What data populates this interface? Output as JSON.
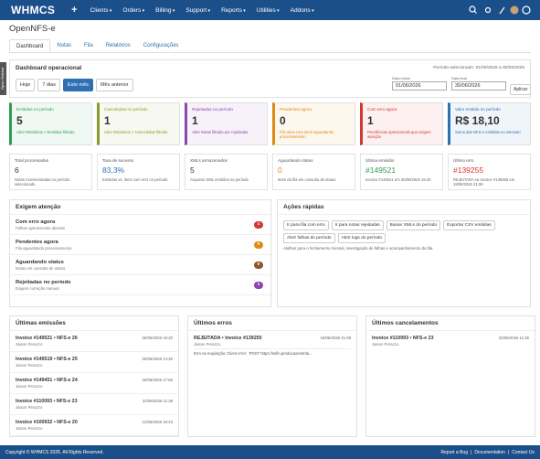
{
  "navbar": {
    "logo": "WHMCS",
    "items": [
      "Clients",
      "Orders",
      "Billing",
      "Support",
      "Reports",
      "Utilities",
      "Addons"
    ]
  },
  "sidebar_tab": "Open Sidebar",
  "page_title": "OpenNFS-e",
  "tabs": [
    "Dashboard",
    "Notas",
    "Fila",
    "Relatórios",
    "Configurações"
  ],
  "dashboard": {
    "title": "Dashboard operacional",
    "period": "Período selecionado: 01/06/2026 a 30/06/2026",
    "ranges": [
      "Hoje",
      "7 dias",
      "Este mês",
      "Mês anterior"
    ],
    "start_label": "Data inicial",
    "start": "01/06/2026",
    "end_label": "Data final",
    "end": "30/06/2026",
    "apply": "Aplicar"
  },
  "kpis": [
    {
      "label": "Emitidas no período",
      "value": 5,
      "note": "Abre Relatórios > Emitidas filtrado",
      "color": "#2e9d4f"
    },
    {
      "label": "Canceladas no período",
      "value": 1,
      "note": "Abre Relatórios > Canceladas filtrado",
      "color": "#8a9a2a"
    },
    {
      "label": "Rejeitadas no período",
      "value": 1,
      "note": "Abre Notas filtrado por rejeitadas",
      "color": "#8e44ad"
    },
    {
      "label": "Pendentes agora",
      "value": 0,
      "note": "Fila ativa com itens aguardando processamento",
      "color": "#e08a12"
    },
    {
      "label": "Com erro agora",
      "value": 1,
      "note": "Pendências operacionais que exigem atenção",
      "color": "#d0392b"
    },
    {
      "label": "Valor emitido no período",
      "value": "R$ 18,10",
      "note": "Soma das NFS-e emitidas no intervalo",
      "color": "#2f6fb3"
    }
  ],
  "stats": [
    {
      "label": "Total processadas",
      "value": 6,
      "note": "Notas movimentadas no período selecionado",
      "color": "#333333"
    },
    {
      "label": "Taxa de sucesso",
      "value": "83,3%",
      "note": "Emitidas vs. itens com erro no período",
      "color": "#2f6fb3"
    },
    {
      "label": "XMLs armazenados",
      "value": 5,
      "note": "Arquivos XML emitidos no período",
      "color": "#333333"
    },
    {
      "label": "Aguardando status",
      "value": 0,
      "note": "Itens da fila em consulta de status",
      "color": "#e08a12"
    },
    {
      "label": "Última emissão",
      "value": "#149521",
      "note": "Invoice #149521 em 30/06/2026 15:20",
      "color": "#2e9d4f"
    },
    {
      "label": "Último erro",
      "value": "#139255",
      "note": "REJEITADA na Invoice #139255 em 18/06/2026 21:08",
      "color": "#d0392b"
    }
  ],
  "attention": {
    "title": "Exigem atenção",
    "items": [
      {
        "label": "Com erro agora",
        "note": "Falhas operacionais abertas",
        "count": 1,
        "color": "#d0392b"
      },
      {
        "label": "Pendentes agora",
        "note": "Fila aguardando processamento",
        "count": 0,
        "color": "#e08a12"
      },
      {
        "label": "Aguardando status",
        "note": "Notas em consulta de status",
        "count": 0,
        "color": "#8a5a2b"
      },
      {
        "label": "Rejeitadas no período",
        "note": "Exigem correção manual",
        "count": 1,
        "color": "#8e44ad"
      }
    ]
  },
  "actions": {
    "title": "Ações rápidas",
    "buttons": [
      "Ir para fila com erro",
      "Ir para notas rejeitadas",
      "Baixar XMLs do período",
      "Exportar CSV emitidas",
      "Abrir falhas do período",
      "Abrir logs do período"
    ],
    "note": "Atalhos para o fechamento mensal, investigação de falhas e acompanhamento da fila."
  },
  "emissions": {
    "title": "Últimas emissões",
    "items": [
      {
        "title": "Invoice #149521 • NFS-e 26",
        "client": "Jaison Perazzo",
        "date": "30/06/2026 15:20"
      },
      {
        "title": "Invoice #149519 • NFS-e 25",
        "client": "Jaison Perazzo",
        "date": "30/06/2026 14:20"
      },
      {
        "title": "Invoice #149451 • NFS-e 24",
        "client": "Jaison Perazzo",
        "date": "26/06/2026 17:55"
      },
      {
        "title": "Invoice #110093 • NFS-e 23",
        "client": "Jaison Perazzo",
        "date": "22/06/2026 11:38"
      },
      {
        "title": "Invoice #100932 • NFS-e 20",
        "client": "Jaison Perazzo",
        "date": "12/06/2026 16:23"
      }
    ]
  },
  "errors": {
    "title": "Últimos erros",
    "items": [
      {
        "title": "REJEITADA • Invoice #139255",
        "client": "Jaison Perazzo",
        "date": "18/06/2026 21:08",
        "message": "Erro na requisição: Client error: `POST https://sefin.producaorestrita..."
      }
    ]
  },
  "cancellations": {
    "title": "Últimos cancelamentos",
    "items": [
      {
        "title": "Invoice #110093 • NFS-e 23",
        "client": "Jaison Perazzo",
        "date": "22/06/2026 11:30"
      }
    ]
  },
  "footer": {
    "copyright": "Copyright © WHMCS 2026. All Rights Reserved.",
    "links": [
      "Report a Bug",
      "Documentation",
      "Contact Us"
    ]
  }
}
